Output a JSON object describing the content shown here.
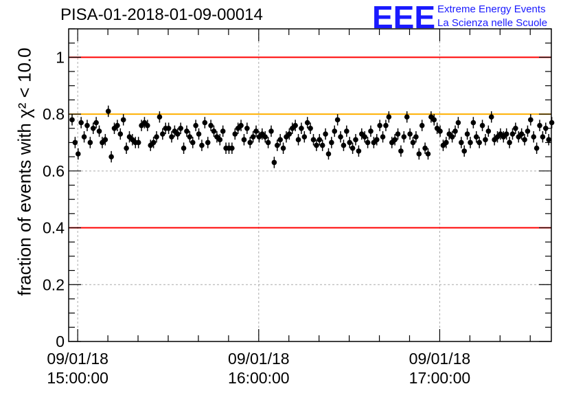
{
  "header": {
    "run_title": "PISA-01-2018-01-09-00014",
    "logo_text": "EEE",
    "logo_line1": "Extreme Energy Events",
    "logo_line2": "La Scienza nelle Scuole"
  },
  "chart_data": {
    "type": "scatter",
    "title": "PISA-01-2018-01-09-00014",
    "ylabel": "fraction of events with χ² < 10.0",
    "xlabel": "",
    "ylim": [
      0,
      1.1
    ],
    "xlim": [
      "09/01/18 14:57:00",
      "09/01/18 17:37:00"
    ],
    "y_ticks": [
      "0",
      "0.2",
      "0.4",
      "0.6",
      "0.8",
      "1"
    ],
    "x_tick_labels": [
      {
        "date": "09/01/18",
        "time": "15:00:00"
      },
      {
        "date": "09/01/18",
        "time": "16:00:00"
      },
      {
        "date": "09/01/18",
        "time": "17:00:00"
      }
    ],
    "grid": true,
    "reference_lines": [
      {
        "y": 1.0,
        "color": "#ff0000"
      },
      {
        "y": 0.8,
        "color": "#ffb000"
      },
      {
        "y": 0.4,
        "color": "#ff0000"
      }
    ],
    "error_bar_halfwidth": 0.02,
    "x_minutes_from_14_57": [
      0.0,
      1.0,
      2.0,
      3.0,
      4.0,
      5.0,
      6.0,
      7.0,
      8.0,
      9.0,
      10.0,
      11.0,
      12.0,
      13.0,
      14.0,
      15.0,
      16.0,
      17.0,
      18.0,
      19.0,
      20.0,
      21.0,
      22.0,
      23.0,
      24.0,
      25.0,
      26.0,
      27.0,
      28.0,
      29.0,
      30.0,
      31.0,
      32.0,
      33.0,
      34.0,
      35.0,
      36.0,
      37.0,
      38.0,
      39.0,
      40.0,
      41.0,
      42.0,
      43.0,
      44.0,
      45.0,
      46.0,
      47.0,
      48.0,
      49.0,
      50.0,
      51.0,
      52.0,
      53.0,
      54.0,
      55.0,
      56.0,
      57.0,
      58.0,
      59.0,
      60.0,
      61.0,
      62.0,
      63.0,
      64.0,
      65.0,
      66.0,
      67.0,
      68.0,
      69.0,
      70.0,
      71.0,
      72.0,
      73.0,
      74.0,
      75.0,
      76.0,
      77.0,
      78.0,
      79.0,
      80.0,
      81.0,
      82.0,
      83.0,
      84.0,
      85.0,
      86.0,
      87.0,
      88.0,
      89.0,
      90.0,
      91.0,
      92.0,
      93.0,
      94.0,
      95.0,
      96.0,
      97.0,
      98.0,
      99.0,
      100.0,
      101.0,
      102.0,
      103.0,
      104.0,
      105.0,
      106.0,
      107.0,
      108.0,
      109.0,
      110.0,
      111.0,
      112.0,
      113.0,
      114.0,
      115.0,
      116.0,
      117.0,
      118.0,
      119.0,
      120.0,
      121.0,
      122.0,
      123.0,
      124.0,
      125.0,
      126.0,
      127.0,
      128.0,
      129.0,
      130.0,
      131.0,
      132.0,
      133.0,
      134.0,
      135.0,
      136.0,
      137.0,
      138.0,
      139.0,
      140.0,
      141.0,
      142.0,
      143.0,
      144.0,
      145.0,
      146.0,
      147.0,
      148.0,
      149.0,
      150.0,
      151.0,
      152.0,
      153.0,
      154.0,
      155.0,
      156.0,
      157.0,
      158.0,
      159.0
    ],
    "y": [
      0.78,
      0.7,
      0.66,
      0.77,
      0.72,
      0.76,
      0.7,
      0.75,
      0.77,
      0.74,
      0.7,
      0.71,
      0.81,
      0.65,
      0.75,
      0.76,
      0.73,
      0.78,
      0.68,
      0.72,
      0.71,
      0.7,
      0.7,
      0.76,
      0.77,
      0.76,
      0.69,
      0.7,
      0.72,
      0.79,
      0.73,
      0.75,
      0.75,
      0.72,
      0.74,
      0.73,
      0.75,
      0.68,
      0.74,
      0.72,
      0.7,
      0.76,
      0.73,
      0.69,
      0.77,
      0.7,
      0.76,
      0.74,
      0.72,
      0.71,
      0.74,
      0.68,
      0.68,
      0.68,
      0.73,
      0.75,
      0.76,
      0.71,
      0.75,
      0.7,
      0.72,
      0.74,
      0.72,
      0.73,
      0.72,
      0.7,
      0.74,
      0.63,
      0.69,
      0.71,
      0.68,
      0.72,
      0.73,
      0.75,
      0.76,
      0.71,
      0.75,
      0.72,
      0.77,
      0.75,
      0.71,
      0.69,
      0.71,
      0.69,
      0.73,
      0.66,
      0.7,
      0.74,
      0.78,
      0.72,
      0.69,
      0.74,
      0.7,
      0.68,
      0.71,
      0.67,
      0.73,
      0.72,
      0.7,
      0.74,
      0.7,
      0.71,
      0.76,
      0.72,
      0.76,
      0.79,
      0.7,
      0.71,
      0.73,
      0.67,
      0.72,
      0.79,
      0.73,
      0.7,
      0.72,
      0.66,
      0.76,
      0.68,
      0.66,
      0.79,
      0.78,
      0.75,
      0.74,
      0.69,
      0.7,
      0.73,
      0.72,
      0.74,
      0.77,
      0.7,
      0.67,
      0.73,
      0.7,
      0.77,
      0.72,
      0.7,
      0.76,
      0.71,
      0.74,
      0.79,
      0.71,
      0.72,
      0.73,
      0.72,
      0.73,
      0.7,
      0.73,
      0.75,
      0.72,
      0.73,
      0.71,
      0.74,
      0.78,
      0.72,
      0.68,
      0.76,
      0.72,
      0.75,
      0.71,
      0.77
    ]
  }
}
